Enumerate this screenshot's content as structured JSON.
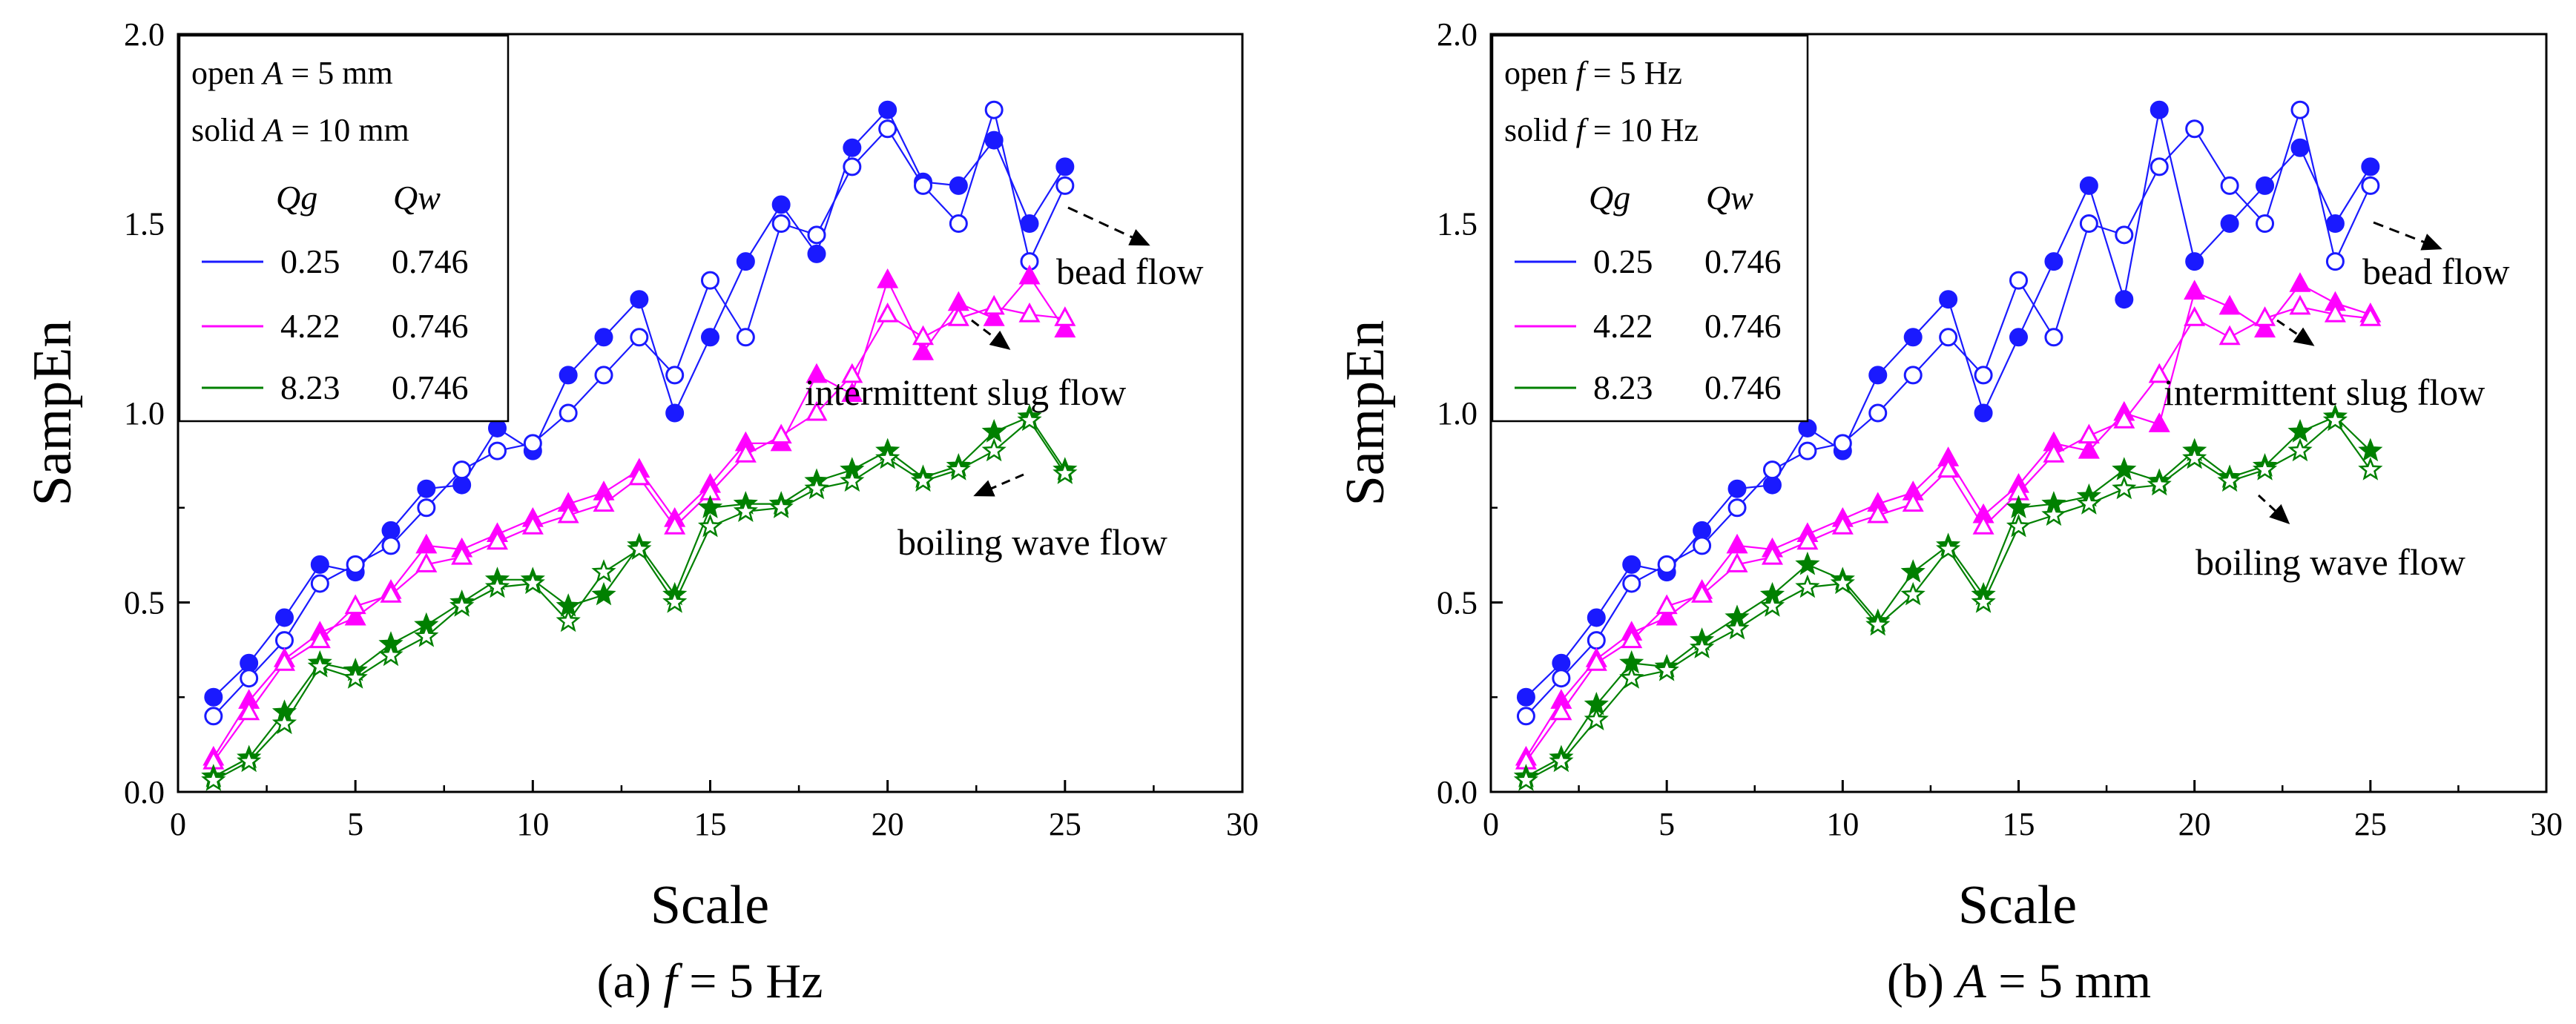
{
  "panels": [
    {
      "caption_prefix": "(a)",
      "caption_var": "f",
      "caption_rest": " = 5 Hz",
      "legend": {
        "open_pre": "open ",
        "open_var": "A",
        "open_rest": " = 5 mm",
        "solid_pre": "solid ",
        "solid_var": "A",
        "solid_rest": " = 10 mm",
        "col_qg": "Qg",
        "col_qw": "Qw",
        "rows": [
          {
            "qg": "0.25",
            "qw": "0.746"
          },
          {
            "qg": "4.22",
            "qw": "0.746"
          },
          {
            "qg": "8.23",
            "qw": "0.746"
          }
        ]
      },
      "annotations": [
        "bead flow",
        "intermittent slug flow",
        "boiling wave flow"
      ]
    },
    {
      "caption_prefix": "(b)",
      "caption_var": "A",
      "caption_rest": " = 5 mm",
      "legend": {
        "open_pre": "open ",
        "open_var": "f",
        "open_rest": " = 5 Hz",
        "solid_pre": "solid ",
        "solid_var": "f",
        "solid_rest": " = 10 Hz",
        "col_qg": "Qg",
        "col_qw": "Qw",
        "rows": [
          {
            "qg": "0.25",
            "qw": "0.746"
          },
          {
            "qg": "4.22",
            "qw": "0.746"
          },
          {
            "qg": "8.23",
            "qw": "0.746"
          }
        ]
      },
      "annotations": [
        "bead flow",
        "intermittent slug flow",
        "boiling wave flow"
      ]
    }
  ],
  "colors": {
    "blue": "#1a1aff",
    "magenta": "#ff00ff",
    "green": "#008000"
  },
  "chart_data": [
    {
      "type": "line",
      "title": "(a) f = 5 Hz",
      "xlabel": "Scale",
      "ylabel": "SampEn",
      "xlim": [
        0,
        30
      ],
      "ylim": [
        0,
        2.0
      ],
      "xticks": [
        0,
        5,
        10,
        15,
        20,
        25,
        30
      ],
      "yticks": [
        0.0,
        0.5,
        1.0,
        1.5,
        2.0
      ],
      "x": [
        1,
        2,
        3,
        4,
        5,
        6,
        7,
        8,
        9,
        10,
        11,
        12,
        13,
        14,
        15,
        16,
        17,
        18,
        19,
        20,
        21,
        22,
        23,
        24,
        25
      ],
      "series": [
        {
          "name": "Qg 0.25 Qw 0.746 solid (A = 10 mm)",
          "group": "blue",
          "marker": "circle",
          "filled": true,
          "values": [
            0.25,
            0.34,
            0.46,
            0.6,
            0.58,
            0.69,
            0.8,
            0.81,
            0.96,
            0.9,
            1.1,
            1.2,
            1.3,
            1.0,
            1.2,
            1.4,
            1.55,
            1.42,
            1.7,
            1.8,
            1.61,
            1.6,
            1.72,
            1.5,
            1.65
          ]
        },
        {
          "name": "Qg 0.25 Qw 0.746 open (A = 5 mm)",
          "group": "blue",
          "marker": "circle",
          "filled": false,
          "values": [
            0.2,
            0.3,
            0.4,
            0.55,
            0.6,
            0.65,
            0.75,
            0.85,
            0.9,
            0.92,
            1.0,
            1.1,
            1.2,
            1.1,
            1.35,
            1.2,
            1.5,
            1.47,
            1.65,
            1.75,
            1.6,
            1.5,
            1.8,
            1.4,
            1.6
          ]
        },
        {
          "name": "Qg 4.22 Qw 0.746 solid (A = 10 mm)",
          "group": "magenta",
          "marker": "triangle",
          "filled": true,
          "values": [
            0.09,
            0.24,
            0.35,
            0.42,
            0.46,
            0.53,
            0.65,
            0.64,
            0.68,
            0.72,
            0.76,
            0.79,
            0.85,
            0.72,
            0.81,
            0.92,
            0.92,
            1.1,
            1.05,
            1.35,
            1.16,
            1.29,
            1.25,
            1.36,
            1.22
          ]
        },
        {
          "name": "Qg 4.22 Qw 0.746 open (A = 5 mm)",
          "group": "magenta",
          "marker": "triangle",
          "filled": false,
          "values": [
            0.08,
            0.21,
            0.34,
            0.4,
            0.49,
            0.52,
            0.6,
            0.62,
            0.66,
            0.7,
            0.73,
            0.76,
            0.83,
            0.7,
            0.79,
            0.89,
            0.94,
            1.0,
            1.1,
            1.26,
            1.2,
            1.25,
            1.28,
            1.26,
            1.25
          ]
        },
        {
          "name": "Qg 8.23 Qw 0.746 solid (A = 10 mm)",
          "group": "green",
          "marker": "star",
          "filled": true,
          "values": [
            0.04,
            0.09,
            0.21,
            0.34,
            0.32,
            0.39,
            0.44,
            0.5,
            0.56,
            0.56,
            0.49,
            0.52,
            0.65,
            0.52,
            0.75,
            0.76,
            0.76,
            0.82,
            0.85,
            0.9,
            0.83,
            0.86,
            0.95,
            0.99,
            0.85
          ]
        },
        {
          "name": "Qg 8.23 Qw 0.746 open (A = 5 mm)",
          "group": "green",
          "marker": "star",
          "filled": false,
          "values": [
            0.03,
            0.08,
            0.18,
            0.33,
            0.3,
            0.36,
            0.41,
            0.49,
            0.54,
            0.55,
            0.45,
            0.58,
            0.64,
            0.5,
            0.7,
            0.74,
            0.75,
            0.8,
            0.82,
            0.88,
            0.82,
            0.85,
            0.9,
            0.98,
            0.84
          ]
        }
      ]
    },
    {
      "type": "line",
      "title": "(b) A = 5 mm",
      "xlabel": "Scale",
      "ylabel": "SampEn",
      "xlim": [
        0,
        30
      ],
      "ylim": [
        0,
        2.0
      ],
      "xticks": [
        0,
        5,
        10,
        15,
        20,
        25,
        30
      ],
      "yticks": [
        0.0,
        0.5,
        1.0,
        1.5,
        2.0
      ],
      "x": [
        1,
        2,
        3,
        4,
        5,
        6,
        7,
        8,
        9,
        10,
        11,
        12,
        13,
        14,
        15,
        16,
        17,
        18,
        19,
        20,
        21,
        22,
        23,
        24,
        25
      ],
      "series": [
        {
          "name": "Qg 0.25 Qw 0.746 solid (f = 10 Hz)",
          "group": "blue",
          "marker": "circle",
          "filled": true,
          "values": [
            0.25,
            0.34,
            0.46,
            0.6,
            0.58,
            0.69,
            0.8,
            0.81,
            0.96,
            0.9,
            1.1,
            1.2,
            1.3,
            1.0,
            1.2,
            1.4,
            1.6,
            1.3,
            1.8,
            1.4,
            1.5,
            1.6,
            1.7,
            1.5,
            1.65
          ]
        },
        {
          "name": "Qg 0.25 Qw 0.746 open (f = 5 Hz)",
          "group": "blue",
          "marker": "circle",
          "filled": false,
          "values": [
            0.2,
            0.3,
            0.4,
            0.55,
            0.6,
            0.65,
            0.75,
            0.85,
            0.9,
            0.92,
            1.0,
            1.1,
            1.2,
            1.1,
            1.35,
            1.2,
            1.5,
            1.47,
            1.65,
            1.75,
            1.6,
            1.5,
            1.8,
            1.4,
            1.6
          ]
        },
        {
          "name": "Qg 4.22 Qw 0.746 solid (f = 10 Hz)",
          "group": "magenta",
          "marker": "triangle",
          "filled": true,
          "values": [
            0.09,
            0.24,
            0.35,
            0.42,
            0.46,
            0.53,
            0.65,
            0.64,
            0.68,
            0.72,
            0.76,
            0.79,
            0.88,
            0.73,
            0.81,
            0.92,
            0.9,
            1.0,
            0.97,
            1.32,
            1.28,
            1.22,
            1.34,
            1.29,
            1.26
          ]
        },
        {
          "name": "Qg 4.22 Qw 0.746 open (f = 5 Hz)",
          "group": "magenta",
          "marker": "triangle",
          "filled": false,
          "values": [
            0.08,
            0.21,
            0.34,
            0.4,
            0.49,
            0.52,
            0.6,
            0.62,
            0.66,
            0.7,
            0.73,
            0.76,
            0.85,
            0.7,
            0.79,
            0.89,
            0.94,
            0.98,
            1.1,
            1.25,
            1.2,
            1.25,
            1.28,
            1.26,
            1.25
          ]
        },
        {
          "name": "Qg 8.23 Qw 0.746 solid (f = 10 Hz)",
          "group": "green",
          "marker": "star",
          "filled": true,
          "values": [
            0.04,
            0.09,
            0.23,
            0.34,
            0.33,
            0.4,
            0.46,
            0.52,
            0.6,
            0.56,
            0.45,
            0.58,
            0.65,
            0.52,
            0.75,
            0.76,
            0.78,
            0.85,
            0.82,
            0.9,
            0.83,
            0.86,
            0.95,
            0.99,
            0.9
          ]
        },
        {
          "name": "Qg 8.23 Qw 0.746 open (f = 5 Hz)",
          "group": "green",
          "marker": "star",
          "filled": false,
          "values": [
            0.03,
            0.08,
            0.19,
            0.3,
            0.32,
            0.38,
            0.43,
            0.49,
            0.54,
            0.55,
            0.44,
            0.52,
            0.64,
            0.5,
            0.7,
            0.73,
            0.76,
            0.8,
            0.81,
            0.88,
            0.82,
            0.85,
            0.9,
            0.98,
            0.85
          ]
        }
      ]
    }
  ]
}
